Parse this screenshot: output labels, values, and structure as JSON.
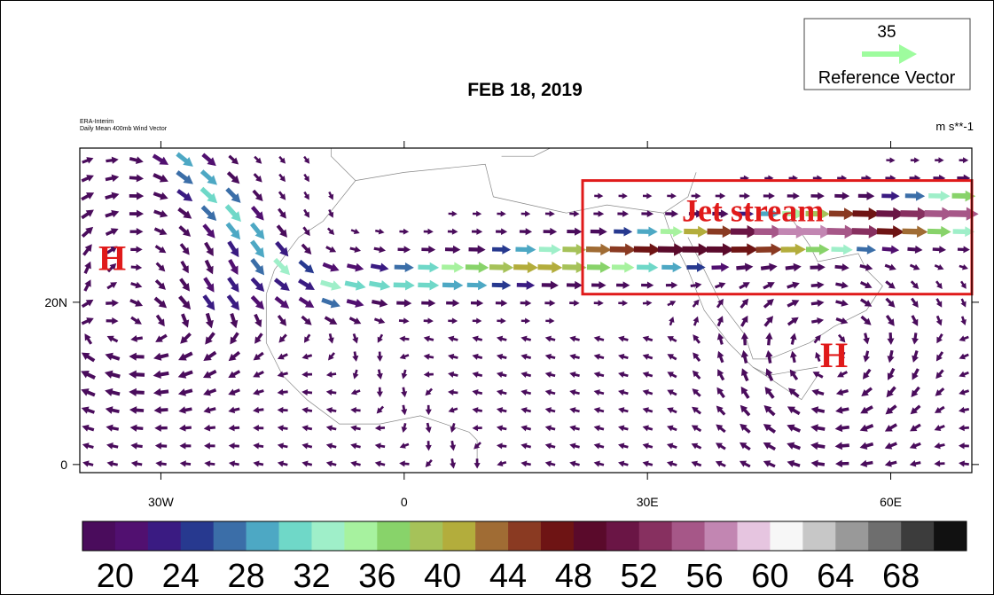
{
  "title": "FEB 18, 2019",
  "source_line1": "ERA-Interim",
  "source_line2": "Daily Mean 400mb  Wind Vector",
  "units": "m s**-1",
  "reference_vector": {
    "magnitude": "35",
    "label": "Reference Vector",
    "color": "#9efc9e"
  },
  "map": {
    "lon_range": [
      -40,
      70
    ],
    "lat_range": [
      -1,
      39
    ],
    "x_ticks": [
      {
        "lon": -30,
        "label": "30W"
      },
      {
        "lon": 0,
        "label": "0"
      },
      {
        "lon": 30,
        "label": "30E"
      },
      {
        "lon": 60,
        "label": "60E"
      }
    ],
    "y_ticks": [
      {
        "lat": 20,
        "label": "20N"
      },
      {
        "lat": 0,
        "label": "0"
      }
    ],
    "annotations": [
      {
        "text": "H",
        "lon": -36,
        "lat": 24,
        "color": "#e01a1a"
      },
      {
        "text": "H",
        "lon": 53,
        "lat": 12,
        "color": "#e01a1a"
      },
      {
        "text": "Jet stream",
        "lon": 43,
        "lat": 30,
        "color": "#e01a1a"
      }
    ],
    "highlight_box": {
      "lon": [
        22,
        70
      ],
      "lat": [
        21,
        35
      ],
      "color": "#e01a1a"
    }
  },
  "colorbar": {
    "colors": [
      "#4a0c5c",
      "#511070",
      "#3a1b82",
      "#27398f",
      "#3b6ea8",
      "#4da8c4",
      "#6fd8c8",
      "#9fefc9",
      "#a7f29f",
      "#88d36a",
      "#a6c259",
      "#b3ad3c",
      "#a06c34",
      "#8a3a22",
      "#6e1414",
      "#5a0a2b",
      "#6a1545",
      "#873060",
      "#a65788",
      "#c286b2",
      "#e6c5e0",
      "#f7f7f7",
      "#c7c7c7",
      "#999999",
      "#6e6e6e",
      "#3c3c3c",
      "#111111"
    ],
    "labels": [
      "20",
      "24",
      "28",
      "32",
      "36",
      "40",
      "44",
      "48",
      "52",
      "56",
      "60",
      "64",
      "68"
    ]
  }
}
